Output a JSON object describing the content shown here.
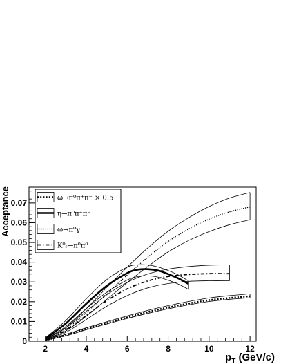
{
  "chart_data": {
    "type": "line",
    "xlabel": "p",
    "xlabel_sub": "T",
    "xlabel_unit": " (GeV/c)",
    "ylabel": "Acceptance",
    "xlim": [
      1.2,
      12.3
    ],
    "ylim": [
      0,
      0.078
    ],
    "xticks": [
      2,
      4,
      6,
      8,
      10,
      12
    ],
    "yticks": [
      0,
      0.01,
      0.02,
      0.03,
      0.04,
      0.05,
      0.06,
      0.07
    ],
    "ytick_labels": [
      "0",
      "0.01",
      "0.02",
      "0.03",
      "0.04",
      "0.05",
      "0.06",
      "0.07"
    ],
    "grid": false,
    "legend_position": "top-left",
    "series": [
      {
        "name": "ω→π⁰π⁺π⁻ × 0.5",
        "style": "dotted-thick",
        "x": [
          2.0,
          3.0,
          4.0,
          5.0,
          6.0,
          7.0,
          8.0,
          9.0,
          10.0,
          11.0,
          12.0
        ],
        "y": [
          0.0005,
          0.003,
          0.0062,
          0.0092,
          0.0121,
          0.0148,
          0.0171,
          0.0191,
          0.0208,
          0.0219,
          0.0228
        ],
        "band_low": [
          0.0004,
          0.0027,
          0.0058,
          0.0087,
          0.0115,
          0.0141,
          0.0164,
          0.0184,
          0.0201,
          0.0212,
          0.022
        ],
        "band_high": [
          0.0007,
          0.0035,
          0.0068,
          0.0099,
          0.0128,
          0.0156,
          0.018,
          0.0201,
          0.0219,
          0.0231,
          0.024
        ]
      },
      {
        "name": "η→π⁰π⁺π⁻",
        "style": "solid-thick",
        "x": [
          2.0,
          3.0,
          4.0,
          5.0,
          6.0,
          6.5,
          7.0,
          7.5,
          8.0,
          8.5,
          9.0
        ],
        "y": [
          0.0013,
          0.009,
          0.019,
          0.028,
          0.0345,
          0.0362,
          0.0365,
          0.0358,
          0.034,
          0.0318,
          0.029
        ],
        "band_low": [
          0.0009,
          0.0075,
          0.0165,
          0.0248,
          0.031,
          0.0327,
          0.0331,
          0.0325,
          0.0309,
          0.0289,
          0.0262
        ],
        "band_high": [
          0.0017,
          0.0105,
          0.0215,
          0.0312,
          0.0375,
          0.0387,
          0.0386,
          0.0376,
          0.0358,
          0.0335,
          0.0305
        ]
      },
      {
        "name": "ω→π⁰γ",
        "style": "dotted",
        "x": [
          2.0,
          3.0,
          4.0,
          5.0,
          6.0,
          7.0,
          8.0,
          9.0,
          10.0,
          11.0,
          12.0
        ],
        "y": [
          0.0008,
          0.006,
          0.0145,
          0.024,
          0.0335,
          0.0425,
          0.0505,
          0.0568,
          0.0618,
          0.0655,
          0.068
        ],
        "band_low": [
          0.0006,
          0.0052,
          0.0127,
          0.0212,
          0.0297,
          0.0378,
          0.0452,
          0.051,
          0.0555,
          0.059,
          0.0615
        ],
        "band_high": [
          0.001,
          0.0069,
          0.0165,
          0.0272,
          0.0375,
          0.0472,
          0.0557,
          0.0625,
          0.0682,
          0.0725,
          0.0753
        ]
      },
      {
        "name": "K⁰ₛ→π⁰π⁰",
        "style": "dashdot",
        "x": [
          2.0,
          3.0,
          4.0,
          5.0,
          6.0,
          7.0,
          8.0,
          9.0,
          10.0,
          11.0
        ],
        "y": [
          0.0005,
          0.0055,
          0.013,
          0.0205,
          0.0265,
          0.0305,
          0.0328,
          0.0338,
          0.0342,
          0.0342
        ],
        "band_low": [
          0.0003,
          0.0045,
          0.011,
          0.0177,
          0.0231,
          0.027,
          0.0292,
          0.0303,
          0.0306,
          0.0306
        ],
        "band_high": [
          0.0008,
          0.0067,
          0.0152,
          0.0235,
          0.0298,
          0.034,
          0.0365,
          0.0378,
          0.0385,
          0.0387
        ]
      }
    ]
  }
}
